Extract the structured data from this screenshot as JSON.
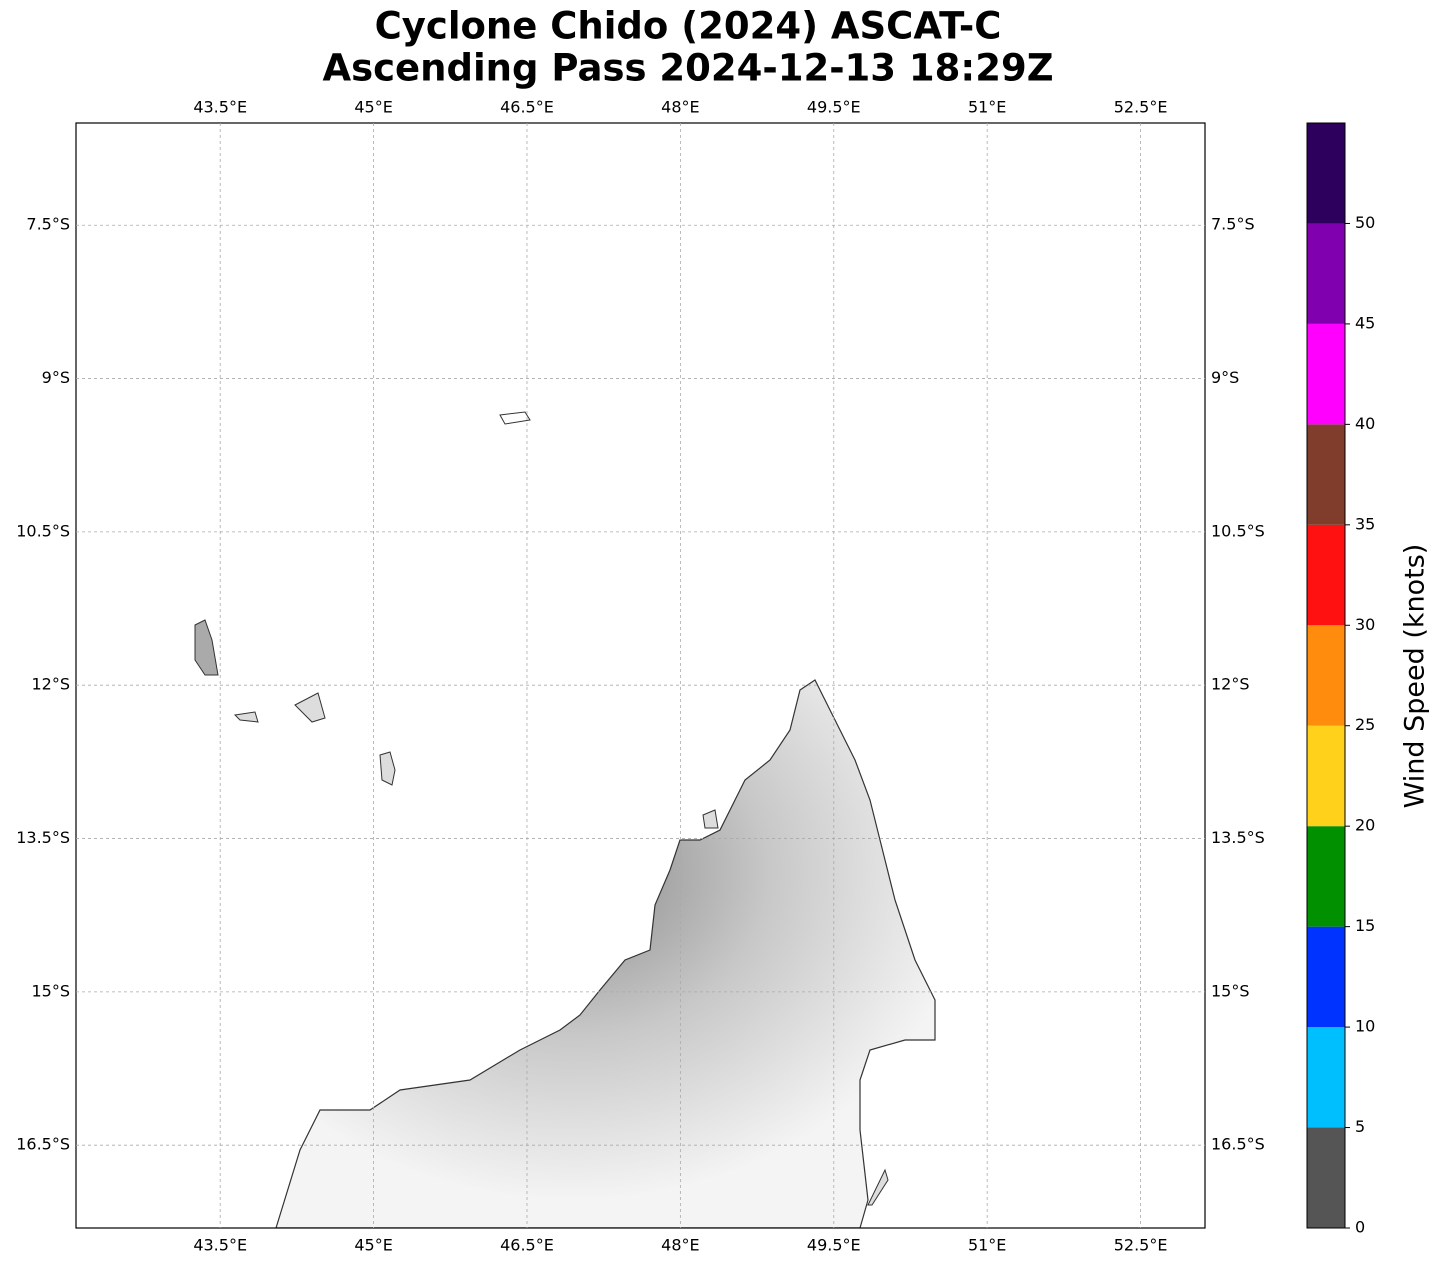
{
  "chart_data": {
    "type": "map",
    "title": "Cyclone Chido (2024) ASCAT-C",
    "subtitle": "Ascending Pass 2024-12-13 18:29Z",
    "xlim": [
      42.09,
      53.13
    ],
    "ylim": [
      -17.31,
      -6.5
    ],
    "xticks": [
      {
        "value": 43.5,
        "label": "43.5°E"
      },
      {
        "value": 45,
        "label": "45°E"
      },
      {
        "value": 46.5,
        "label": "46.5°E"
      },
      {
        "value": 48,
        "label": "48°E"
      },
      {
        "value": 49.5,
        "label": "49.5°E"
      },
      {
        "value": 51,
        "label": "51°E"
      },
      {
        "value": 52.5,
        "label": "52.5°E"
      }
    ],
    "yticks": [
      {
        "value": -7.5,
        "label": "7.5°S"
      },
      {
        "value": -9,
        "label": "9°S"
      },
      {
        "value": -10.5,
        "label": "10.5°S"
      },
      {
        "value": -12,
        "label": "12°S"
      },
      {
        "value": -13.5,
        "label": "13.5°S"
      },
      {
        "value": -15,
        "label": "15°S"
      },
      {
        "value": -16.5,
        "label": "16.5°S"
      }
    ],
    "grid": true,
    "colorbar": {
      "label": "Wind Speed (knots)",
      "bins": [
        0,
        5,
        10,
        15,
        20,
        25,
        30,
        35,
        40,
        45,
        50,
        55
      ],
      "colors": [
        "#555555",
        "#00bfff",
        "#0033ff",
        "#009000",
        "#ffd11a",
        "#ff8c0d",
        "#ff1111",
        "#803d2b",
        "#ff00ff",
        "#8000b0",
        "#2d005e"
      ],
      "ticks": [
        0,
        5,
        10,
        15,
        20,
        25,
        30,
        35,
        40,
        45,
        50
      ]
    }
  }
}
